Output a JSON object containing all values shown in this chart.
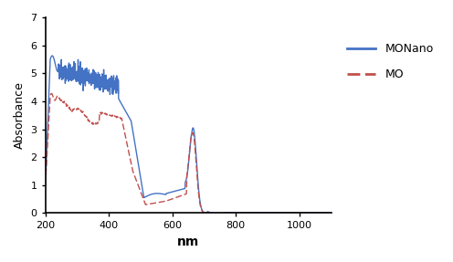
{
  "title": "",
  "xlabel": "nm",
  "ylabel": "Absorbance",
  "xlim": [
    200,
    1100
  ],
  "ylim": [
    0,
    7
  ],
  "yticks": [
    0,
    1,
    2,
    3,
    4,
    5,
    6,
    7
  ],
  "xticks": [
    200,
    400,
    600,
    800,
    1000
  ],
  "monano_color": "#4472C4",
  "mo_color": "#C0504D",
  "legend_labels": [
    "MONano",
    "MO"
  ],
  "background_color": "#ffffff",
  "figsize": [
    4.96,
    2.87
  ],
  "dpi": 100
}
